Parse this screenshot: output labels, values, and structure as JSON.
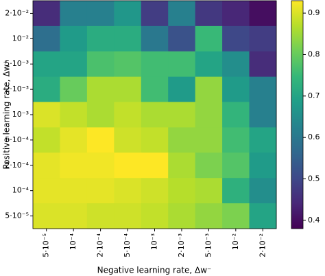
{
  "chart_data": {
    "type": "heatmap",
    "x_label": "Negative learning rate, Δw⁻",
    "y_label": "Positive learning rate, Δw⁺",
    "x_categories": [
      "5·10⁻⁵",
      "10⁻⁴",
      "2·10⁻⁴",
      "5·10⁻⁴",
      "10⁻³",
      "2·10⁻³",
      "5·10⁻³",
      "10⁻²",
      "2·10⁻²"
    ],
    "y_categories": [
      "2·10⁻²",
      "10⁻²",
      "5·10⁻³",
      "2·10⁻³",
      "10⁻³",
      "5·10⁻⁴",
      "2·10⁻⁴",
      "10⁻⁴",
      "5·10⁻⁵"
    ],
    "z": [
      [
        0.45,
        0.62,
        0.62,
        0.67,
        0.48,
        0.62,
        0.47,
        0.44,
        0.4
      ],
      [
        0.58,
        0.68,
        0.72,
        0.72,
        0.6,
        0.52,
        0.75,
        0.5,
        0.48
      ],
      [
        0.7,
        0.7,
        0.77,
        0.78,
        0.76,
        0.76,
        0.7,
        0.65,
        0.45
      ],
      [
        0.72,
        0.8,
        0.86,
        0.86,
        0.76,
        0.68,
        0.84,
        0.68,
        0.62
      ],
      [
        0.9,
        0.88,
        0.86,
        0.88,
        0.86,
        0.86,
        0.84,
        0.74,
        0.62
      ],
      [
        0.88,
        0.91,
        0.93,
        0.89,
        0.88,
        0.84,
        0.84,
        0.76,
        0.7
      ],
      [
        0.91,
        0.92,
        0.92,
        0.93,
        0.93,
        0.86,
        0.82,
        0.78,
        0.68
      ],
      [
        0.91,
        0.91,
        0.91,
        0.9,
        0.89,
        0.87,
        0.86,
        0.73,
        0.65
      ],
      [
        0.9,
        0.9,
        0.89,
        0.89,
        0.88,
        0.86,
        0.84,
        0.82,
        0.7
      ]
    ],
    "colormap": "viridis",
    "zlim": [
      0.38,
      0.93
    ],
    "colorbar_ticks": [
      0.4,
      0.5,
      0.6,
      0.7,
      0.8,
      0.9
    ]
  }
}
